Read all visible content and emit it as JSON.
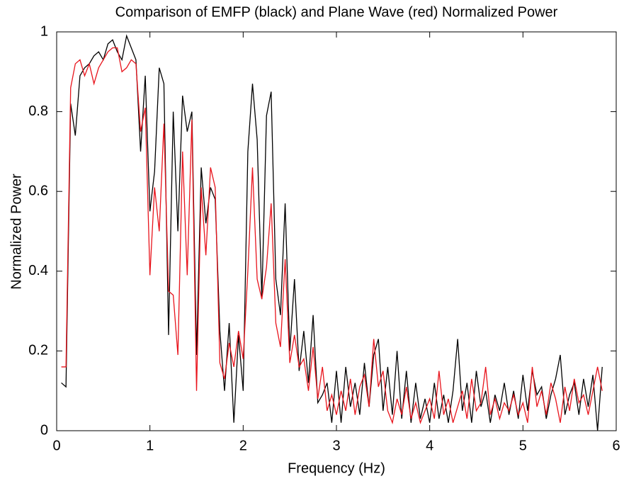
{
  "chart_data": {
    "type": "line",
    "title": "Comparison of EMFP (black) and Plane Wave (red) Normalized Power",
    "x_label": "Frequency (Hz)",
    "y_label": "Normalized Power",
    "x": [
      0.05,
      0.1,
      0.15,
      0.2,
      0.25,
      0.3,
      0.35,
      0.4,
      0.45,
      0.5,
      0.55,
      0.6,
      0.65,
      0.7,
      0.75,
      0.8,
      0.85,
      0.9,
      0.95,
      1.0,
      1.05,
      1.1,
      1.15,
      1.2,
      1.25,
      1.3,
      1.35,
      1.4,
      1.45,
      1.5,
      1.55,
      1.6,
      1.65,
      1.7,
      1.75,
      1.8,
      1.85,
      1.9,
      1.95,
      2.0,
      2.05,
      2.1,
      2.15,
      2.2,
      2.25,
      2.3,
      2.35,
      2.4,
      2.45,
      2.5,
      2.55,
      2.6,
      2.65,
      2.7,
      2.75,
      2.8,
      2.85,
      2.9,
      2.95,
      3.0,
      3.05,
      3.1,
      3.15,
      3.2,
      3.25,
      3.3,
      3.35,
      3.4,
      3.45,
      3.5,
      3.55,
      3.6,
      3.65,
      3.7,
      3.75,
      3.8,
      3.85,
      3.9,
      3.95,
      4.0,
      4.05,
      4.1,
      4.15,
      4.2,
      4.25,
      4.3,
      4.35,
      4.4,
      4.45,
      4.5,
      4.55,
      4.6,
      4.65,
      4.7,
      4.75,
      4.8,
      4.85,
      4.9,
      4.95,
      5.0,
      5.05,
      5.1,
      5.15,
      5.2,
      5.25,
      5.3,
      5.35,
      5.4,
      5.45,
      5.5,
      5.55,
      5.6,
      5.65,
      5.7,
      5.75,
      5.8,
      5.85
    ],
    "series": [
      {
        "color": "#000000",
        "values": [
          0.12,
          0.11,
          0.82,
          0.74,
          0.89,
          0.91,
          0.92,
          0.94,
          0.95,
          0.93,
          0.97,
          0.98,
          0.95,
          0.93,
          0.99,
          0.96,
          0.93,
          0.7,
          0.89,
          0.55,
          0.65,
          0.91,
          0.87,
          0.24,
          0.8,
          0.5,
          0.84,
          0.75,
          0.8,
          0.19,
          0.66,
          0.52,
          0.61,
          0.58,
          0.25,
          0.1,
          0.27,
          0.02,
          0.24,
          0.1,
          0.7,
          0.87,
          0.73,
          0.33,
          0.79,
          0.85,
          0.38,
          0.29,
          0.57,
          0.2,
          0.38,
          0.15,
          0.25,
          0.12,
          0.29,
          0.07,
          0.09,
          0.12,
          0.02,
          0.15,
          0.02,
          0.16,
          0.06,
          0.12,
          0.04,
          0.17,
          0.06,
          0.19,
          0.23,
          0.05,
          0.16,
          0.04,
          0.2,
          0.03,
          0.15,
          0.02,
          0.12,
          0.03,
          0.08,
          0.02,
          0.12,
          0.03,
          0.09,
          0.02,
          0.1,
          0.23,
          0.05,
          0.12,
          0.02,
          0.15,
          0.06,
          0.1,
          0.02,
          0.09,
          0.05,
          0.12,
          0.04,
          0.1,
          0.03,
          0.14,
          0.05,
          0.15,
          0.09,
          0.11,
          0.03,
          0.09,
          0.13,
          0.19,
          0.04,
          0.09,
          0.12,
          0.04,
          0.13,
          0.06,
          0.14,
          0,
          0.16
        ]
      },
      {
        "color": "#e8141c",
        "values": [
          0.16,
          0.16,
          0.86,
          0.92,
          0.93,
          0.89,
          0.92,
          0.87,
          0.91,
          0.93,
          0.95,
          0.96,
          0.96,
          0.9,
          0.91,
          0.93,
          0.92,
          0.75,
          0.81,
          0.39,
          0.61,
          0.5,
          0.77,
          0.35,
          0.34,
          0.19,
          0.7,
          0.39,
          0.78,
          0.1,
          0.61,
          0.44,
          0.66,
          0.61,
          0.17,
          0.13,
          0.22,
          0.16,
          0.25,
          0.18,
          0.4,
          0.66,
          0.38,
          0.33,
          0.41,
          0.57,
          0.27,
          0.21,
          0.43,
          0.17,
          0.24,
          0.16,
          0.18,
          0.1,
          0.21,
          0.08,
          0.16,
          0.05,
          0.09,
          0.04,
          0.1,
          0.05,
          0.13,
          0.04,
          0.11,
          0.14,
          0.06,
          0.23,
          0.11,
          0.15,
          0.05,
          0.02,
          0.08,
          0.04,
          0.11,
          0.03,
          0.07,
          0.02,
          0.05,
          0.08,
          0.03,
          0.15,
          0.04,
          0.08,
          0.02,
          0.06,
          0.1,
          0.03,
          0.13,
          0.05,
          0.07,
          0.16,
          0.04,
          0.08,
          0.03,
          0.07,
          0.05,
          0.09,
          0.04,
          0.07,
          0.02,
          0.16,
          0.06,
          0.1,
          0.04,
          0.12,
          0.08,
          0.02,
          0.11,
          0.05,
          0.13,
          0.07,
          0.09,
          0.04,
          0.1,
          0.16,
          0.1
        ]
      }
    ],
    "xlim": [
      0,
      6
    ],
    "xticks": [
      0,
      1,
      2,
      3,
      4,
      5,
      6
    ],
    "ylim": [
      0,
      1
    ],
    "yticks": [
      0,
      0.2,
      0.4,
      0.6,
      0.8,
      1
    ]
  }
}
